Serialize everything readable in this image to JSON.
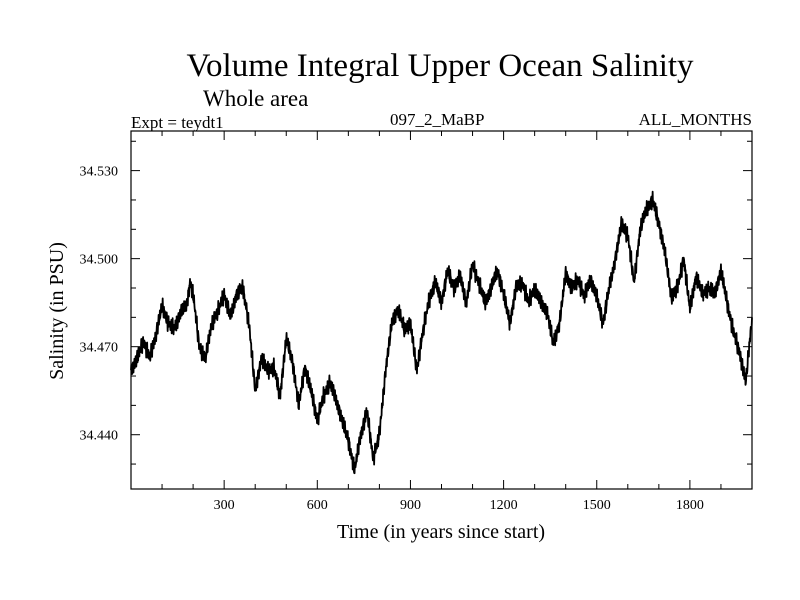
{
  "header": {
    "title": "Volume Integral Upper Ocean Salinity",
    "subtitle": "Whole area",
    "experiment": "Expt = teydt1",
    "run_id": "097_2_MaBP",
    "months": "ALL_MONTHS"
  },
  "chart_data": {
    "type": "line",
    "title": "Volume Integral Upper Ocean Salinity",
    "xlabel": "Time (in years since start)",
    "ylabel": "Salinity (in PSU)",
    "xlim": [
      0,
      2000
    ],
    "ylim": [
      34.4215,
      34.5435
    ],
    "xticks": [
      300,
      600,
      900,
      1200,
      1500,
      1800
    ],
    "xtick_labels": [
      "300",
      "600",
      "900",
      "1200",
      "1500",
      "1800"
    ],
    "yticks": [
      34.44,
      34.47,
      34.5,
      34.53
    ],
    "ytick_labels": [
      "34.440",
      "34.470",
      "34.500",
      "34.530"
    ],
    "grid": false,
    "series": [
      {
        "name": "Volume integral upper ocean salinity",
        "x": [
          0,
          20,
          40,
          60,
          80,
          100,
          120,
          140,
          160,
          180,
          190,
          200,
          220,
          240,
          260,
          280,
          300,
          320,
          340,
          360,
          380,
          400,
          420,
          440,
          460,
          480,
          500,
          520,
          540,
          560,
          580,
          600,
          620,
          640,
          660,
          680,
          700,
          720,
          740,
          760,
          780,
          800,
          820,
          840,
          860,
          880,
          900,
          920,
          940,
          960,
          980,
          1000,
          1020,
          1040,
          1060,
          1080,
          1100,
          1120,
          1140,
          1160,
          1180,
          1200,
          1220,
          1240,
          1260,
          1280,
          1300,
          1320,
          1340,
          1360,
          1380,
          1400,
          1420,
          1440,
          1460,
          1480,
          1500,
          1520,
          1540,
          1560,
          1580,
          1600,
          1620,
          1640,
          1660,
          1680,
          1700,
          1720,
          1740,
          1760,
          1780,
          1800,
          1820,
          1840,
          1860,
          1880,
          1900,
          1920,
          1940,
          1960,
          1980,
          2000
        ],
        "y": [
          34.462,
          34.466,
          34.472,
          34.466,
          34.474,
          34.484,
          34.478,
          34.476,
          34.482,
          34.484,
          34.492,
          34.488,
          34.47,
          34.466,
          34.478,
          34.482,
          34.488,
          34.48,
          34.488,
          34.49,
          34.478,
          34.455,
          34.466,
          34.462,
          34.463,
          34.453,
          34.473,
          34.465,
          34.45,
          34.463,
          34.455,
          34.445,
          34.453,
          34.458,
          34.452,
          34.445,
          34.438,
          34.428,
          34.44,
          34.448,
          34.432,
          34.44,
          34.462,
          34.478,
          34.483,
          34.476,
          34.478,
          34.462,
          34.475,
          34.486,
          34.492,
          34.485,
          34.496,
          34.49,
          34.494,
          34.485,
          34.498,
          34.492,
          34.485,
          34.49,
          34.496,
          34.488,
          34.478,
          34.49,
          34.492,
          34.485,
          34.49,
          34.485,
          34.482,
          34.471,
          34.478,
          34.495,
          34.49,
          34.493,
          34.487,
          34.493,
          34.487,
          34.478,
          34.49,
          34.5,
          34.512,
          34.508,
          34.492,
          34.51,
          34.517,
          34.52,
          34.512,
          34.502,
          34.487,
          34.49,
          34.5,
          34.483,
          34.494,
          34.488,
          34.49,
          34.488,
          34.496,
          34.485,
          34.475,
          34.468,
          34.458,
          34.48
        ]
      }
    ]
  }
}
